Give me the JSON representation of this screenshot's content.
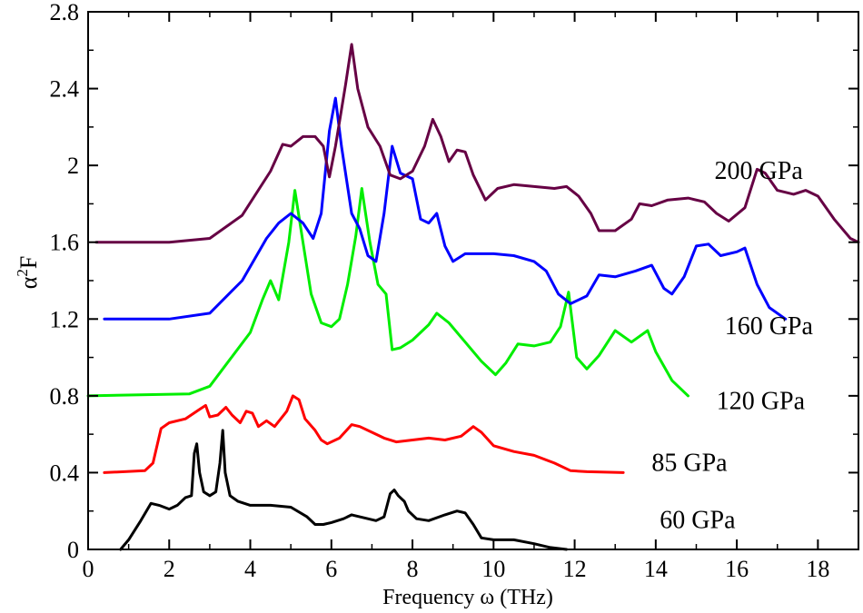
{
  "chart_data": {
    "type": "line",
    "title": "",
    "xlabel": "Frequency ω (THz)",
    "ylabel": "α²F",
    "ylabel_base": "α",
    "ylabel_sup": "2",
    "ylabel_tail": "F",
    "xlim": [
      0,
      19
    ],
    "ylim": [
      0,
      2.8
    ],
    "xticks": [
      0,
      2,
      4,
      6,
      8,
      10,
      12,
      14,
      16,
      18
    ],
    "xtick_labels": [
      "0",
      "2",
      "4",
      "6",
      "8",
      "10",
      "12",
      "14",
      "16",
      "18"
    ],
    "yticks": [
      0,
      0.4,
      0.8,
      1.2,
      1.6,
      2,
      2.4,
      2.8
    ],
    "ytick_labels": [
      "0",
      "0.4",
      "0.8",
      "1.2",
      "1.6",
      "2",
      "2.4",
      "2.8"
    ],
    "grid": false,
    "series": [
      {
        "name": "60 GPa",
        "color": "#000000",
        "label": {
          "text": "60 GPa",
          "x": 14.1,
          "y": 0.11
        },
        "points": [
          [
            0.8,
            0
          ],
          [
            1.0,
            0.05
          ],
          [
            1.3,
            0.15
          ],
          [
            1.55,
            0.24
          ],
          [
            1.75,
            0.23
          ],
          [
            2.0,
            0.21
          ],
          [
            2.2,
            0.23
          ],
          [
            2.4,
            0.27
          ],
          [
            2.55,
            0.28
          ],
          [
            2.62,
            0.5
          ],
          [
            2.68,
            0.55
          ],
          [
            2.75,
            0.4
          ],
          [
            2.85,
            0.3
          ],
          [
            3.0,
            0.28
          ],
          [
            3.15,
            0.3
          ],
          [
            3.25,
            0.45
          ],
          [
            3.32,
            0.62
          ],
          [
            3.38,
            0.4
          ],
          [
            3.5,
            0.28
          ],
          [
            3.7,
            0.25
          ],
          [
            4.0,
            0.23
          ],
          [
            4.5,
            0.23
          ],
          [
            5.0,
            0.22
          ],
          [
            5.4,
            0.17
          ],
          [
            5.6,
            0.13
          ],
          [
            5.8,
            0.13
          ],
          [
            6.0,
            0.14
          ],
          [
            6.3,
            0.16
          ],
          [
            6.5,
            0.18
          ],
          [
            6.9,
            0.16
          ],
          [
            7.1,
            0.15
          ],
          [
            7.3,
            0.17
          ],
          [
            7.45,
            0.29
          ],
          [
            7.55,
            0.31
          ],
          [
            7.65,
            0.28
          ],
          [
            7.8,
            0.25
          ],
          [
            7.9,
            0.2
          ],
          [
            8.1,
            0.16
          ],
          [
            8.4,
            0.15
          ],
          [
            8.8,
            0.18
          ],
          [
            9.1,
            0.2
          ],
          [
            9.3,
            0.19
          ],
          [
            9.5,
            0.13
          ],
          [
            9.7,
            0.06
          ],
          [
            10.0,
            0.05
          ],
          [
            10.5,
            0.05
          ],
          [
            11.0,
            0.03
          ],
          [
            11.4,
            0.01
          ],
          [
            11.8,
            0
          ]
        ]
      },
      {
        "name": "85 GPa",
        "color": "#ff0000",
        "label": {
          "text": "85 GPa",
          "x": 13.9,
          "y": 0.41
        },
        "points": [
          [
            0.4,
            0.4
          ],
          [
            1.4,
            0.41
          ],
          [
            1.6,
            0.45
          ],
          [
            1.8,
            0.63
          ],
          [
            2.0,
            0.66
          ],
          [
            2.4,
            0.68
          ],
          [
            2.75,
            0.73
          ],
          [
            2.9,
            0.75
          ],
          [
            3.0,
            0.69
          ],
          [
            3.2,
            0.7
          ],
          [
            3.4,
            0.74
          ],
          [
            3.55,
            0.7
          ],
          [
            3.75,
            0.66
          ],
          [
            3.9,
            0.72
          ],
          [
            4.05,
            0.71
          ],
          [
            4.2,
            0.64
          ],
          [
            4.4,
            0.67
          ],
          [
            4.6,
            0.64
          ],
          [
            4.9,
            0.72
          ],
          [
            5.05,
            0.8
          ],
          [
            5.2,
            0.78
          ],
          [
            5.35,
            0.68
          ],
          [
            5.6,
            0.62
          ],
          [
            5.75,
            0.57
          ],
          [
            5.9,
            0.55
          ],
          [
            6.2,
            0.58
          ],
          [
            6.5,
            0.65
          ],
          [
            6.7,
            0.64
          ],
          [
            7.0,
            0.61
          ],
          [
            7.3,
            0.58
          ],
          [
            7.6,
            0.56
          ],
          [
            8.0,
            0.57
          ],
          [
            8.4,
            0.58
          ],
          [
            8.8,
            0.57
          ],
          [
            9.2,
            0.59
          ],
          [
            9.5,
            0.64
          ],
          [
            9.7,
            0.61
          ],
          [
            10.0,
            0.54
          ],
          [
            10.5,
            0.51
          ],
          [
            11.0,
            0.49
          ],
          [
            11.5,
            0.45
          ],
          [
            11.9,
            0.41
          ],
          [
            12.3,
            0.405
          ],
          [
            13.2,
            0.4
          ]
        ]
      },
      {
        "name": "120 GPa",
        "color": "#00ee00",
        "label": {
          "text": "120 GPa",
          "x": 15.5,
          "y": 0.73
        },
        "points": [
          [
            0,
            0.8
          ],
          [
            2.5,
            0.81
          ],
          [
            3.0,
            0.85
          ],
          [
            3.5,
            0.99
          ],
          [
            4.0,
            1.13
          ],
          [
            4.3,
            1.3
          ],
          [
            4.5,
            1.4
          ],
          [
            4.7,
            1.3
          ],
          [
            4.95,
            1.6
          ],
          [
            5.1,
            1.87
          ],
          [
            5.3,
            1.6
          ],
          [
            5.5,
            1.33
          ],
          [
            5.75,
            1.18
          ],
          [
            6.0,
            1.16
          ],
          [
            6.2,
            1.2
          ],
          [
            6.4,
            1.38
          ],
          [
            6.6,
            1.63
          ],
          [
            6.75,
            1.88
          ],
          [
            6.95,
            1.6
          ],
          [
            7.15,
            1.38
          ],
          [
            7.35,
            1.33
          ],
          [
            7.5,
            1.04
          ],
          [
            7.7,
            1.05
          ],
          [
            8.0,
            1.09
          ],
          [
            8.4,
            1.17
          ],
          [
            8.6,
            1.23
          ],
          [
            8.9,
            1.18
          ],
          [
            9.3,
            1.08
          ],
          [
            9.7,
            0.98
          ],
          [
            10.05,
            0.91
          ],
          [
            10.3,
            0.97
          ],
          [
            10.6,
            1.07
          ],
          [
            11.0,
            1.06
          ],
          [
            11.4,
            1.08
          ],
          [
            11.65,
            1.16
          ],
          [
            11.85,
            1.34
          ],
          [
            12.05,
            1.0
          ],
          [
            12.3,
            0.94
          ],
          [
            12.6,
            1.01
          ],
          [
            13.0,
            1.14
          ],
          [
            13.4,
            1.08
          ],
          [
            13.8,
            1.14
          ],
          [
            14.0,
            1.03
          ],
          [
            14.4,
            0.88
          ],
          [
            14.8,
            0.8
          ]
        ]
      },
      {
        "name": "160 GPa",
        "color": "#0000ff",
        "label": {
          "text": "160 GPa",
          "x": 15.7,
          "y": 1.12
        },
        "points": [
          [
            0.4,
            1.2
          ],
          [
            2.0,
            1.2
          ],
          [
            3.0,
            1.23
          ],
          [
            3.8,
            1.4
          ],
          [
            4.4,
            1.62
          ],
          [
            4.7,
            1.7
          ],
          [
            5.0,
            1.75
          ],
          [
            5.3,
            1.7
          ],
          [
            5.55,
            1.62
          ],
          [
            5.75,
            1.75
          ],
          [
            5.95,
            2.18
          ],
          [
            6.1,
            2.35
          ],
          [
            6.25,
            2.1
          ],
          [
            6.5,
            1.75
          ],
          [
            6.7,
            1.67
          ],
          [
            6.9,
            1.53
          ],
          [
            7.1,
            1.5
          ],
          [
            7.3,
            1.75
          ],
          [
            7.5,
            2.1
          ],
          [
            7.7,
            1.96
          ],
          [
            8.0,
            1.93
          ],
          [
            8.2,
            1.72
          ],
          [
            8.4,
            1.7
          ],
          [
            8.6,
            1.75
          ],
          [
            8.8,
            1.58
          ],
          [
            9.0,
            1.5
          ],
          [
            9.3,
            1.54
          ],
          [
            10.0,
            1.54
          ],
          [
            10.5,
            1.53
          ],
          [
            11.0,
            1.5
          ],
          [
            11.3,
            1.45
          ],
          [
            11.6,
            1.33
          ],
          [
            11.9,
            1.28
          ],
          [
            12.3,
            1.32
          ],
          [
            12.6,
            1.43
          ],
          [
            13.0,
            1.42
          ],
          [
            13.5,
            1.45
          ],
          [
            13.9,
            1.48
          ],
          [
            14.2,
            1.36
          ],
          [
            14.4,
            1.33
          ],
          [
            14.7,
            1.42
          ],
          [
            15.0,
            1.58
          ],
          [
            15.3,
            1.59
          ],
          [
            15.6,
            1.53
          ],
          [
            16.0,
            1.55
          ],
          [
            16.2,
            1.57
          ],
          [
            16.5,
            1.38
          ],
          [
            16.8,
            1.26
          ],
          [
            17.2,
            1.2
          ]
        ]
      },
      {
        "name": "200 GPa",
        "color": "#660044",
        "label": {
          "text": "200 GPa",
          "x": 15.45,
          "y": 1.93
        },
        "points": [
          [
            0.2,
            1.6
          ],
          [
            2.0,
            1.6
          ],
          [
            3.0,
            1.62
          ],
          [
            3.8,
            1.74
          ],
          [
            4.5,
            1.97
          ],
          [
            4.8,
            2.11
          ],
          [
            5.0,
            2.1
          ],
          [
            5.3,
            2.15
          ],
          [
            5.6,
            2.15
          ],
          [
            5.8,
            2.1
          ],
          [
            5.95,
            1.94
          ],
          [
            6.1,
            2.1
          ],
          [
            6.35,
            2.42
          ],
          [
            6.5,
            2.63
          ],
          [
            6.65,
            2.4
          ],
          [
            6.9,
            2.2
          ],
          [
            7.2,
            2.1
          ],
          [
            7.45,
            1.95
          ],
          [
            7.7,
            1.93
          ],
          [
            8.0,
            1.97
          ],
          [
            8.3,
            2.1
          ],
          [
            8.5,
            2.24
          ],
          [
            8.7,
            2.15
          ],
          [
            8.9,
            2.02
          ],
          [
            9.1,
            2.08
          ],
          [
            9.3,
            2.07
          ],
          [
            9.5,
            1.95
          ],
          [
            9.8,
            1.82
          ],
          [
            10.1,
            1.88
          ],
          [
            10.5,
            1.9
          ],
          [
            11.0,
            1.89
          ],
          [
            11.5,
            1.88
          ],
          [
            11.8,
            1.89
          ],
          [
            12.1,
            1.84
          ],
          [
            12.4,
            1.75
          ],
          [
            12.6,
            1.66
          ],
          [
            13.0,
            1.66
          ],
          [
            13.4,
            1.72
          ],
          [
            13.6,
            1.8
          ],
          [
            13.9,
            1.79
          ],
          [
            14.3,
            1.82
          ],
          [
            14.8,
            1.83
          ],
          [
            15.2,
            1.81
          ],
          [
            15.5,
            1.75
          ],
          [
            15.8,
            1.71
          ],
          [
            16.2,
            1.78
          ],
          [
            16.5,
            1.98
          ],
          [
            16.7,
            1.96
          ],
          [
            17.0,
            1.87
          ],
          [
            17.4,
            1.85
          ],
          [
            17.7,
            1.87
          ],
          [
            18.0,
            1.84
          ],
          [
            18.4,
            1.72
          ],
          [
            18.8,
            1.62
          ],
          [
            19.0,
            1.6
          ]
        ]
      }
    ]
  }
}
